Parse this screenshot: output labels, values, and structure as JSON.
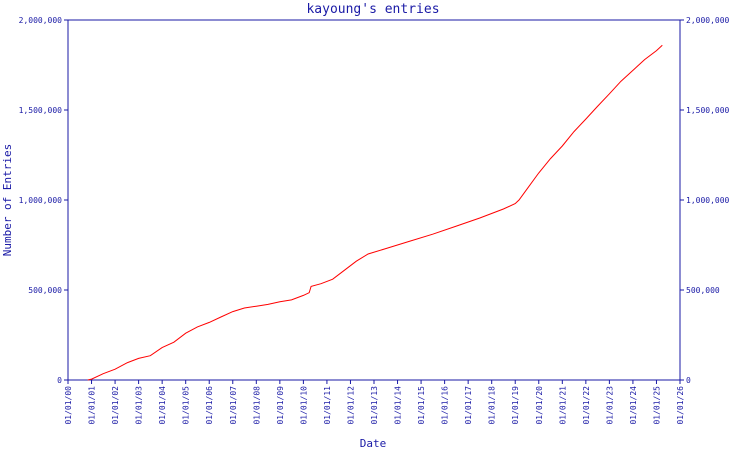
{
  "chart_data": {
    "type": "line",
    "title": "kayoung's entries",
    "xlabel": "Date",
    "ylabel": "Number of Entries",
    "x_tick_labels": [
      "01/01/00",
      "01/01/01",
      "01/01/02",
      "01/01/03",
      "01/01/04",
      "01/01/05",
      "01/01/06",
      "01/01/07",
      "01/01/08",
      "01/01/09",
      "01/01/10",
      "01/01/11",
      "01/01/12",
      "01/01/13",
      "01/01/14",
      "01/01/15",
      "01/01/16",
      "01/01/17",
      "01/01/18",
      "01/01/19",
      "01/01/20",
      "01/01/21",
      "01/01/22",
      "01/01/23",
      "01/01/24",
      "01/01/25",
      "01/01/26"
    ],
    "y_tick_labels": [
      "0",
      "500,000",
      "1,000,000",
      "1,500,000",
      "2,000,000"
    ],
    "ylim": [
      0,
      2000000
    ],
    "xlim": [
      "2000-01-01",
      "2026-01-01"
    ],
    "grid": false,
    "series": [
      {
        "color": "#ff0000",
        "points": [
          [
            "2000-11-01",
            0
          ],
          [
            "2001-01-01",
            5000
          ],
          [
            "2001-07-01",
            35000
          ],
          [
            "2002-01-01",
            60000
          ],
          [
            "2002-07-01",
            95000
          ],
          [
            "2003-01-01",
            120000
          ],
          [
            "2003-07-01",
            135000
          ],
          [
            "2004-01-01",
            180000
          ],
          [
            "2004-07-01",
            210000
          ],
          [
            "2005-01-01",
            260000
          ],
          [
            "2005-07-01",
            295000
          ],
          [
            "2006-01-01",
            320000
          ],
          [
            "2006-07-01",
            350000
          ],
          [
            "2007-01-01",
            380000
          ],
          [
            "2007-07-01",
            400000
          ],
          [
            "2008-01-01",
            410000
          ],
          [
            "2008-07-01",
            420000
          ],
          [
            "2009-01-01",
            435000
          ],
          [
            "2009-07-01",
            445000
          ],
          [
            "2010-01-01",
            470000
          ],
          [
            "2010-04-01",
            485000
          ],
          [
            "2010-05-01",
            520000
          ],
          [
            "2010-10-01",
            535000
          ],
          [
            "2011-04-01",
            560000
          ],
          [
            "2011-10-01",
            610000
          ],
          [
            "2012-04-01",
            660000
          ],
          [
            "2012-10-01",
            700000
          ],
          [
            "2013-07-01",
            730000
          ],
          [
            "2014-07-01",
            770000
          ],
          [
            "2015-07-01",
            810000
          ],
          [
            "2016-07-01",
            855000
          ],
          [
            "2017-07-01",
            900000
          ],
          [
            "2018-07-01",
            950000
          ],
          [
            "2019-01-01",
            980000
          ],
          [
            "2019-03-01",
            1000000
          ],
          [
            "2019-07-01",
            1060000
          ],
          [
            "2020-01-01",
            1150000
          ],
          [
            "2020-07-01",
            1230000
          ],
          [
            "2021-01-01",
            1300000
          ],
          [
            "2021-07-01",
            1380000
          ],
          [
            "2022-01-01",
            1450000
          ],
          [
            "2022-07-01",
            1520000
          ],
          [
            "2023-01-01",
            1590000
          ],
          [
            "2023-07-01",
            1660000
          ],
          [
            "2024-01-01",
            1720000
          ],
          [
            "2024-07-01",
            1780000
          ],
          [
            "2025-01-01",
            1830000
          ],
          [
            "2025-04-01",
            1860000
          ]
        ]
      }
    ]
  }
}
